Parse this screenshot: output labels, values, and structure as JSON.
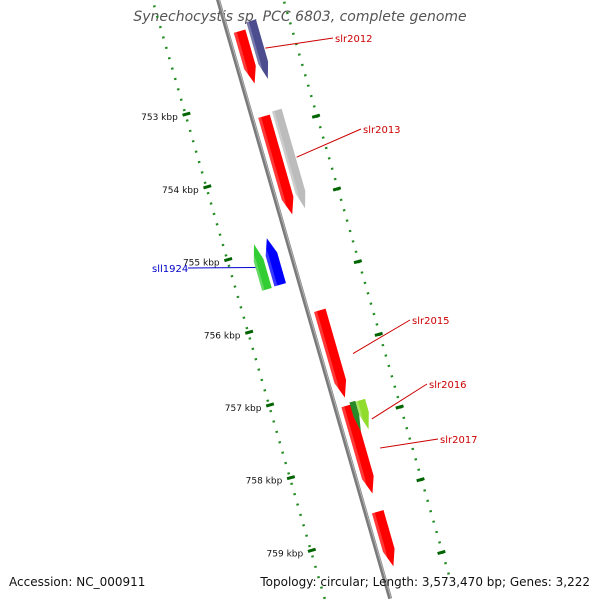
{
  "title": "Synechocystis sp. PCC 6803, complete genome",
  "footer": {
    "accession": "Accession: NC_000911",
    "summary": "Topology: circular; Length: 3,573,470 bp; Genes: 3,222"
  },
  "ticks": [
    {
      "kbp": 753,
      "label": "753 kbp"
    },
    {
      "kbp": 754,
      "label": "754 kbp"
    },
    {
      "kbp": 755,
      "label": "755 kbp"
    },
    {
      "kbp": 756,
      "label": "756 kbp"
    },
    {
      "kbp": 757,
      "label": "757 kbp"
    },
    {
      "kbp": 758,
      "label": "758 kbp"
    },
    {
      "kbp": 759,
      "label": "759 kbp"
    }
  ],
  "genes": [
    {
      "name": "slr2012",
      "strand": "+",
      "start": 752.14,
      "end": 752.86,
      "color": "#ff0000",
      "label_color": "#cc0000",
      "labeled": true
    },
    {
      "name": "slr2013",
      "strand": "+",
      "start": 753.31,
      "end": 754.66,
      "color": "#ff0000",
      "label_color": "#cc0000",
      "labeled": true
    },
    {
      "name": "slr2015",
      "strand": "+",
      "start": 755.98,
      "end": 757.18,
      "color": "#ff0000",
      "label_color": "#cc0000",
      "labeled": true
    },
    {
      "name": "slr2017",
      "strand": "+",
      "start": 757.29,
      "end": 758.5,
      "color": "#ff0000",
      "label_color": "#cc0000",
      "labeled": true
    },
    {
      "name": "",
      "strand": "+",
      "start": 758.75,
      "end": 759.5,
      "color": "#ff0000",
      "label_color": "#cc0000",
      "labeled": false
    },
    {
      "name": "sll1924",
      "strand": "-",
      "start": 754.87,
      "end": 755.51,
      "color": "#0000ff",
      "label_color": "#0000cc",
      "labeled": true
    }
  ],
  "features": [
    {
      "track": "fwd-outer",
      "start": 752.05,
      "end": 752.85,
      "color": "#4b4d8f"
    },
    {
      "track": "fwd-outer",
      "start": 753.28,
      "end": 754.63,
      "color": "#bcbcbc"
    },
    {
      "track": "fwd-outer",
      "start": 757.27,
      "end": 757.67,
      "color": "#8fdc2c"
    },
    {
      "track": "rev-outer",
      "start": 754.9,
      "end": 755.52,
      "color": "#32cd32"
    }
  ],
  "unlabeled_rna": {
    "name": "slr2016",
    "start": 757.26,
    "end": 757.67,
    "color": "#2a8a2a"
  },
  "label_slr2016": {
    "name": "slr2016",
    "color": "#cc0000"
  }
}
